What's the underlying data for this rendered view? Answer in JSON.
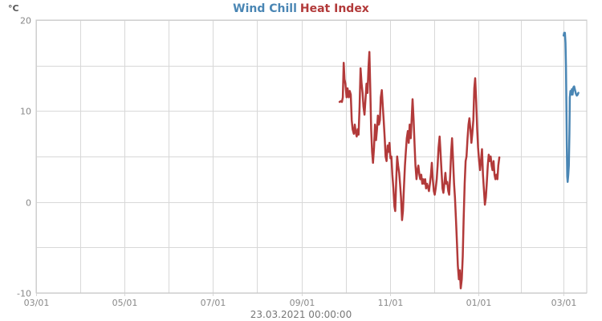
{
  "chart_data": {
    "type": "line",
    "title_parts": [
      "Wind Chill",
      "Heat Index"
    ],
    "y_unit": "°C",
    "ylim": [
      -10,
      20
    ],
    "y_ticks": [
      -10,
      0,
      10,
      20
    ],
    "x_tick_labels": [
      "03/01",
      "05/01",
      "07/01",
      "09/01",
      "11/01",
      "01/01",
      "03/01"
    ],
    "x_tick_days": [
      0,
      61,
      122,
      184,
      245,
      306,
      365
    ],
    "x_range_days": [
      0,
      381
    ],
    "timestamp": "23.03.2021 00:00:00",
    "grid": true,
    "legend": "title",
    "series": [
      {
        "name": "Wind Chill",
        "color": "#4a86b4",
        "points": [
          [
            365.0,
            18.3
          ],
          [
            365.4,
            18.6
          ],
          [
            365.9,
            18.6
          ],
          [
            366.3,
            17.5
          ],
          [
            366.6,
            15.0
          ],
          [
            366.9,
            11.0
          ],
          [
            367.2,
            6.0
          ],
          [
            367.5,
            2.8
          ],
          [
            367.8,
            2.2
          ],
          [
            368.2,
            3.0
          ],
          [
            368.6,
            4.0
          ],
          [
            369.0,
            7.5
          ],
          [
            369.3,
            11.5
          ],
          [
            369.7,
            12.2
          ],
          [
            370.2,
            11.8
          ],
          [
            370.7,
            12.4
          ],
          [
            371.2,
            11.8
          ],
          [
            371.7,
            12.6
          ],
          [
            372.3,
            12.7
          ],
          [
            372.9,
            12.3
          ],
          [
            373.5,
            11.9
          ],
          [
            374.1,
            11.7
          ],
          [
            374.7,
            11.8
          ],
          [
            375.2,
            12.0
          ]
        ]
      },
      {
        "name": "Heat Index",
        "color": "#b23a3a",
        "points": [
          [
            210.0,
            11.0
          ],
          [
            211.0,
            11.1
          ],
          [
            211.6,
            11.0
          ],
          [
            212.2,
            11.5
          ],
          [
            212.8,
            15.3
          ],
          [
            213.4,
            13.5
          ],
          [
            214.0,
            13.0
          ],
          [
            214.8,
            11.5
          ],
          [
            215.5,
            12.5
          ],
          [
            216.3,
            11.5
          ],
          [
            217.0,
            12.2
          ],
          [
            217.7,
            11.8
          ],
          [
            218.4,
            9.0
          ],
          [
            219.0,
            8.0
          ],
          [
            219.8,
            7.5
          ],
          [
            220.5,
            8.5
          ],
          [
            221.2,
            7.6
          ],
          [
            221.8,
            7.2
          ],
          [
            222.5,
            8.0
          ],
          [
            223.1,
            7.4
          ],
          [
            223.8,
            10.5
          ],
          [
            224.5,
            14.7
          ],
          [
            225.2,
            13.0
          ],
          [
            225.9,
            12.0
          ],
          [
            226.5,
            10.5
          ],
          [
            227.2,
            9.6
          ],
          [
            227.9,
            11.2
          ],
          [
            228.6,
            13.0
          ],
          [
            229.3,
            12.0
          ],
          [
            230.0,
            14.8
          ],
          [
            230.6,
            16.5
          ],
          [
            231.2,
            12.5
          ],
          [
            231.8,
            8.0
          ],
          [
            232.5,
            5.5
          ],
          [
            233.1,
            4.3
          ],
          [
            233.8,
            6.0
          ],
          [
            234.5,
            8.5
          ],
          [
            235.2,
            6.8
          ],
          [
            235.9,
            8.0
          ],
          [
            236.5,
            9.5
          ],
          [
            237.2,
            8.5
          ],
          [
            237.9,
            9.0
          ],
          [
            238.5,
            11.5
          ],
          [
            239.2,
            12.3
          ],
          [
            239.9,
            10.5
          ],
          [
            240.5,
            9.0
          ],
          [
            241.2,
            7.0
          ],
          [
            241.8,
            5.0
          ],
          [
            242.5,
            4.5
          ],
          [
            243.2,
            6.2
          ],
          [
            243.8,
            5.5
          ],
          [
            244.5,
            6.5
          ],
          [
            245.2,
            4.8
          ],
          [
            245.8,
            5.0
          ],
          [
            246.5,
            3.0
          ],
          [
            247.2,
            1.5
          ],
          [
            247.9,
            -0.5
          ],
          [
            248.5,
            -1.0
          ],
          [
            249.2,
            2.5
          ],
          [
            249.8,
            5.0
          ],
          [
            250.5,
            4.0
          ],
          [
            251.2,
            3.2
          ],
          [
            251.8,
            2.0
          ],
          [
            252.5,
            0.5
          ],
          [
            253.2,
            -2.0
          ],
          [
            253.8,
            -1.0
          ],
          [
            254.5,
            1.5
          ],
          [
            255.2,
            4.0
          ],
          [
            255.8,
            5.5
          ],
          [
            256.5,
            7.0
          ],
          [
            257.2,
            7.8
          ],
          [
            257.8,
            6.5
          ],
          [
            258.5,
            8.5
          ],
          [
            259.2,
            7.0
          ],
          [
            259.8,
            9.0
          ],
          [
            260.5,
            11.3
          ],
          [
            261.2,
            9.0
          ],
          [
            261.8,
            6.5
          ],
          [
            262.5,
            4.0
          ],
          [
            263.2,
            2.5
          ],
          [
            263.8,
            3.5
          ],
          [
            264.5,
            4.0
          ],
          [
            265.2,
            3.0
          ],
          [
            265.8,
            2.5
          ],
          [
            266.5,
            3.0
          ],
          [
            267.2,
            2.0
          ],
          [
            267.8,
            2.5
          ],
          [
            268.5,
            2.0
          ],
          [
            269.2,
            2.5
          ],
          [
            269.8,
            1.5
          ],
          [
            270.5,
            2.0
          ],
          [
            271.2,
            1.6
          ],
          [
            271.8,
            1.2
          ],
          [
            272.5,
            2.0
          ],
          [
            273.2,
            3.0
          ],
          [
            273.8,
            4.3
          ],
          [
            274.5,
            2.5
          ],
          [
            275.2,
            1.2
          ],
          [
            275.8,
            0.8
          ],
          [
            276.5,
            1.5
          ],
          [
            277.2,
            2.5
          ],
          [
            277.8,
            4.0
          ],
          [
            278.5,
            6.0
          ],
          [
            279.2,
            7.2
          ],
          [
            279.8,
            5.5
          ],
          [
            280.5,
            3.5
          ],
          [
            281.2,
            1.5
          ],
          [
            281.8,
            1.0
          ],
          [
            282.5,
            2.0
          ],
          [
            283.2,
            3.2
          ],
          [
            283.8,
            2.0
          ],
          [
            284.5,
            2.2
          ],
          [
            285.2,
            1.2
          ],
          [
            285.8,
            0.8
          ],
          [
            286.5,
            3.0
          ],
          [
            287.2,
            5.5
          ],
          [
            287.8,
            7.0
          ],
          [
            288.5,
            4.5
          ],
          [
            289.2,
            2.0
          ],
          [
            289.8,
            0.5
          ],
          [
            290.5,
            -2.0
          ],
          [
            291.2,
            -4.5
          ],
          [
            291.8,
            -7.0
          ],
          [
            292.5,
            -8.5
          ],
          [
            293.2,
            -7.5
          ],
          [
            293.8,
            -9.5
          ],
          [
            294.5,
            -8.5
          ],
          [
            295.2,
            -6.0
          ],
          [
            295.8,
            -2.0
          ],
          [
            296.5,
            2.0
          ],
          [
            297.2,
            4.5
          ],
          [
            297.8,
            5.0
          ],
          [
            298.5,
            7.0
          ],
          [
            299.2,
            8.5
          ],
          [
            299.8,
            9.2
          ],
          [
            300.5,
            8.0
          ],
          [
            301.2,
            6.5
          ],
          [
            301.8,
            7.5
          ],
          [
            302.5,
            9.0
          ],
          [
            303.2,
            12.5
          ],
          [
            303.8,
            13.6
          ],
          [
            304.5,
            11.0
          ],
          [
            305.2,
            8.0
          ],
          [
            305.8,
            6.0
          ],
          [
            306.5,
            4.5
          ],
          [
            307.2,
            3.5
          ],
          [
            307.8,
            4.5
          ],
          [
            308.5,
            5.8
          ],
          [
            309.2,
            3.0
          ],
          [
            309.8,
            1.5
          ],
          [
            310.5,
            -0.3
          ],
          [
            311.2,
            0.5
          ],
          [
            311.8,
            2.0
          ],
          [
            312.5,
            4.0
          ],
          [
            313.2,
            5.2
          ],
          [
            313.8,
            4.5
          ],
          [
            314.5,
            5.0
          ],
          [
            315.2,
            4.0
          ],
          [
            315.8,
            3.5
          ],
          [
            316.5,
            4.5
          ],
          [
            317.2,
            3.0
          ],
          [
            317.8,
            2.5
          ],
          [
            318.5,
            3.0
          ],
          [
            319.2,
            2.5
          ],
          [
            319.8,
            4.0
          ],
          [
            320.5,
            4.9
          ]
        ]
      }
    ]
  }
}
